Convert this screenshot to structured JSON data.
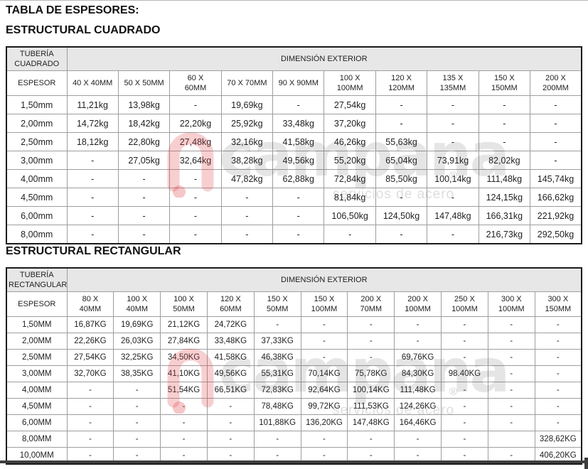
{
  "page": {
    "title": "TABLA DE ESPESORES:"
  },
  "watermark": {
    "brand": "campana",
    "tagline": "servicios de acero",
    "registered": "®"
  },
  "colors": {
    "header_bg": "#e7e7e7",
    "outer_border": "#1b1b1b",
    "inner_border": "#9e9e9e",
    "text": "#1f1f1f",
    "watermark_red": "#e2444c",
    "watermark_grey": "#e2e2e2",
    "bottom_bar": "#3f3f3f"
  },
  "sections": [
    {
      "heading": "ESTRUCTURAL CUADRADO",
      "table": {
        "corner_label": "TUBERÍA\nCUADRADO",
        "group_header": "DIMENSIÓN EXTERIOR",
        "row_header": "ESPESOR",
        "columns": [
          "40 X 40MM",
          "50 X 50MM",
          "60 X\n60MM",
          "70 X 70MM",
          "90 X 90MM",
          "100 X\n100MM",
          "120 X\n120MM",
          "135 X\n135MM",
          "150 X\n150MM",
          "200 X\n200MM"
        ],
        "rows": [
          {
            "espesor": "1,50mm",
            "values": [
              "11,21kg",
              "13,98kg",
              "-",
              "19,69kg",
              "-",
              "27,54kg",
              "-",
              "-",
              "-",
              "-"
            ]
          },
          {
            "espesor": "2,00mm",
            "values": [
              "14,72kg",
              "18,42kg",
              "22,20kg",
              "25,92kg",
              "33,48kg",
              "37,20kg",
              "-",
              "-",
              "-",
              "-"
            ]
          },
          {
            "espesor": "2,50mm",
            "values": [
              "18,12kg",
              "22,80kg",
              "27,48kg",
              "32,16kg",
              "41,58kg",
              "46,26kg",
              "55,63kg",
              "-",
              "-",
              "-"
            ]
          },
          {
            "espesor": "3,00mm",
            "values": [
              "-",
              "27,05kg",
              "32,64kg",
              "38,28kg",
              "49,56kg",
              "55,20kg",
              "65,04kg",
              "73,91kg",
              "82,02kg",
              "-"
            ]
          },
          {
            "espesor": "4,00mm",
            "values": [
              "-",
              "-",
              "-",
              "47,82kg",
              "62,88kg",
              "72,84kg",
              "85,50kg",
              "100,14kg",
              "111,48kg",
              "145,74kg"
            ]
          },
          {
            "espesor": "4,50mm",
            "values": [
              "-",
              "-",
              "-",
              "-",
              "-",
              "81,84kg",
              "-",
              "-",
              "124,15kg",
              "166,62kg"
            ]
          },
          {
            "espesor": "6,00mm",
            "values": [
              "-",
              "-",
              "-",
              "-",
              "-",
              "106,50kg",
              "124,50kg",
              "147,48kg",
              "166,31kg",
              "221,92kg"
            ]
          },
          {
            "espesor": "8,00mm",
            "values": [
              "-",
              "-",
              "-",
              "-",
              "-",
              "-",
              "-",
              "-",
              "216,73kg",
              "292,50kg"
            ]
          }
        ]
      }
    },
    {
      "heading": "ESTRUCTURAL RECTANGULAR",
      "table": {
        "corner_label": "TUBERÍA\nRECTANGULAR",
        "group_header": "DIMENSIÓN EXTERIOR",
        "row_header": "ESPESOR",
        "columns": [
          "80 X\n40MM",
          "100 X\n40MM",
          "100 X\n50MM",
          "120 X\n60MM",
          "150 X\n50MM",
          "150 X\n100MM",
          "200 X\n70MM",
          "200 X\n100MM",
          "250 X\n100MM",
          "300 X\n100MM",
          "300 X\n150MM"
        ],
        "rows": [
          {
            "espesor": "1,50MM",
            "values": [
              "16,87KG",
              "19,69KG",
              "21,12KG",
              "24,72KG",
              "-",
              "-",
              "-",
              "-",
              "-",
              "-",
              "-"
            ]
          },
          {
            "espesor": "2,00MM",
            "values": [
              "22,26KG",
              "26,03KG",
              "27,84KG",
              "33,48KG",
              "37,33KG",
              "-",
              "-",
              "-",
              "-",
              "-",
              "-"
            ]
          },
          {
            "espesor": "2,50MM",
            "values": [
              "27,54KG",
              "32,25KG",
              "34,50KG",
              "41,58KG",
              "46,38KG",
              "-",
              "-",
              "69,76KG",
              "-",
              "-",
              "-"
            ]
          },
          {
            "espesor": "3,00MM",
            "values": [
              "32,70KG",
              "38,35KG",
              "41,10KG",
              "49,56KG",
              "55,31KG",
              "70,14KG",
              "75,78KG",
              "84,30KG",
              "98.40KG",
              "-",
              "-"
            ]
          },
          {
            "espesor": "4,00MM",
            "values": [
              "-",
              "-",
              "51,54KG",
              "66,51KG",
              "72,83KG",
              "92,64KG",
              "100,14KG",
              "111,48KG",
              "-",
              "-",
              "-"
            ]
          },
          {
            "espesor": "4,50MM",
            "values": [
              "-",
              "-",
              "-",
              "-",
              "78,48KG",
              "99,72KG",
              "111,53KG",
              "124,26KG",
              "-",
              "-",
              "-"
            ]
          },
          {
            "espesor": "6,00MM",
            "values": [
              "-",
              "-",
              "-",
              "-",
              "101,88KG",
              "136,20KG",
              "147,48KG",
              "164,46KG",
              "-",
              "-",
              "-"
            ]
          },
          {
            "espesor": "8,00MM",
            "values": [
              "-",
              "-",
              "-",
              "-",
              "-",
              "-",
              "-",
              "-",
              "-",
              "",
              "328,62KG"
            ]
          },
          {
            "espesor": "10,00MM",
            "values": [
              "-",
              "-",
              "-",
              "-",
              "-",
              "-",
              "-",
              "-",
              "-",
              "-",
              "406,20KG"
            ]
          }
        ]
      }
    }
  ]
}
